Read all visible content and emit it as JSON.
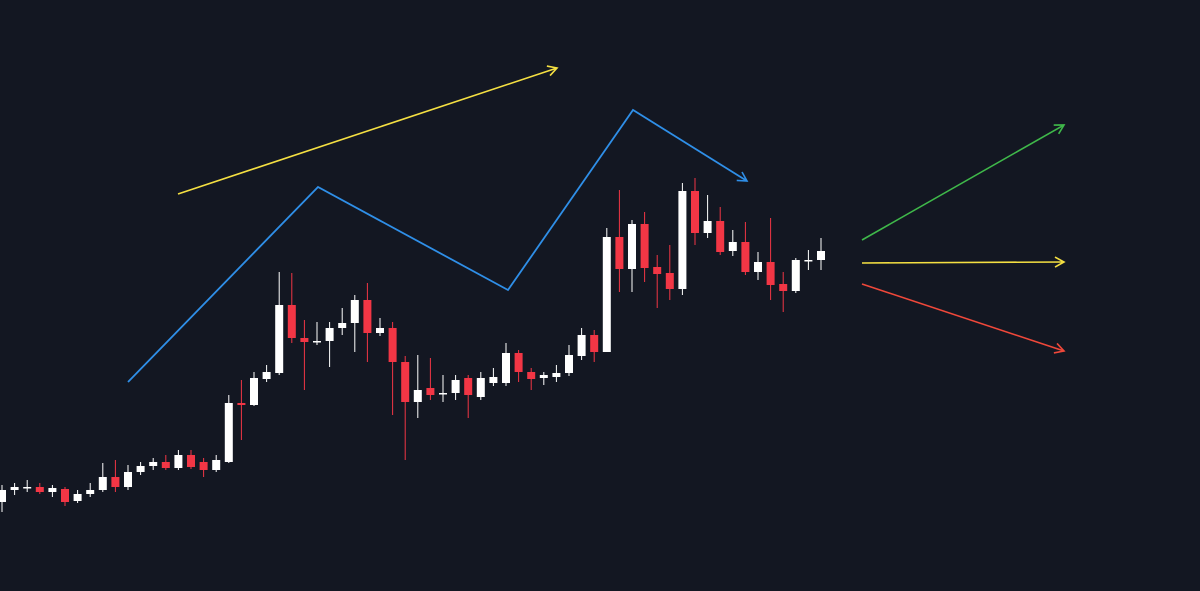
{
  "chart_data": {
    "type": "candlestick",
    "up_color": "#ffffff",
    "down_color": "#f23645",
    "ylim": [
      0,
      591
    ],
    "open": [
      89,
      101,
      104,
      104,
      99,
      102,
      90,
      97,
      101,
      114,
      104,
      119,
      125,
      129,
      123,
      136,
      129,
      121,
      129,
      188,
      186,
      212,
      218,
      286,
      253,
      250,
      250,
      263,
      268,
      291,
      258,
      263,
      229,
      189,
      203,
      198,
      198,
      213,
      194,
      208,
      208,
      238,
      219,
      213,
      214,
      218,
      235,
      256,
      239,
      354,
      322,
      367,
      324,
      318,
      302,
      400,
      358,
      370,
      340,
      349,
      319,
      329,
      307,
      300,
      331,
      331
    ],
    "high": [
      106,
      108,
      111,
      108,
      106,
      104,
      101,
      108,
      128,
      131,
      126,
      129,
      133,
      136,
      141,
      141,
      133,
      136,
      196,
      211,
      219,
      226,
      319,
      318,
      271,
      269,
      269,
      283,
      296,
      308,
      273,
      269,
      235,
      236,
      233,
      216,
      216,
      216,
      219,
      223,
      248,
      241,
      223,
      219,
      226,
      246,
      263,
      261,
      363,
      401,
      371,
      379,
      336,
      346,
      408,
      413,
      396,
      384,
      361,
      369,
      339,
      373,
      319,
      333,
      341,
      353
    ],
    "low": [
      79,
      96,
      99,
      97,
      94,
      85,
      88,
      94,
      99,
      99,
      101,
      116,
      121,
      121,
      121,
      122,
      114,
      119,
      128,
      151,
      185,
      209,
      216,
      248,
      201,
      246,
      224,
      256,
      239,
      229,
      255,
      176,
      131,
      173,
      191,
      189,
      191,
      173,
      191,
      205,
      205,
      209,
      201,
      206,
      209,
      215,
      231,
      229,
      239,
      299,
      299,
      309,
      283,
      291,
      296,
      346,
      353,
      336,
      335,
      316,
      311,
      291,
      279,
      298,
      321,
      321
    ],
    "close": [
      101,
      104,
      104,
      99,
      103,
      89,
      97,
      101,
      114,
      104,
      119,
      125,
      129,
      123,
      136,
      124,
      121,
      131,
      188,
      186,
      213,
      219,
      286,
      253,
      249,
      250,
      263,
      268,
      291,
      258,
      263,
      229,
      189,
      201,
      196,
      198,
      211,
      196,
      213,
      214,
      238,
      219,
      212,
      216,
      218,
      236,
      256,
      239,
      354,
      322,
      367,
      323,
      317,
      302,
      400,
      358,
      370,
      339,
      349,
      319,
      329,
      306,
      300,
      331,
      331,
      340
    ]
  }
}
